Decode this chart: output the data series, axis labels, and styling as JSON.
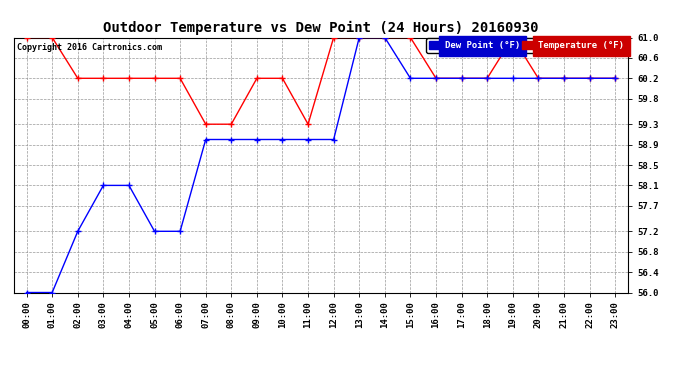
{
  "title": "Outdoor Temperature vs Dew Point (24 Hours) 20160930",
  "copyright": "Copyright 2016 Cartronics.com",
  "x_labels": [
    "00:00",
    "01:00",
    "02:00",
    "03:00",
    "04:00",
    "05:00",
    "06:00",
    "07:00",
    "08:00",
    "09:00",
    "10:00",
    "11:00",
    "12:00",
    "13:00",
    "14:00",
    "15:00",
    "16:00",
    "17:00",
    "18:00",
    "19:00",
    "20:00",
    "21:00",
    "22:00",
    "23:00"
  ],
  "ylim": [
    56.0,
    61.0
  ],
  "yticks": [
    56.0,
    56.4,
    56.8,
    57.2,
    57.7,
    58.1,
    58.5,
    58.9,
    59.3,
    59.8,
    60.2,
    60.6,
    61.0
  ],
  "temp_color": "#ff0000",
  "dew_color": "#0000ff",
  "background_color": "#ffffff",
  "grid_color": "#999999",
  "legend_dew_bg": "#0000cc",
  "legend_temp_bg": "#cc0000",
  "temp_data": [
    61.0,
    61.0,
    60.2,
    60.2,
    60.2,
    60.2,
    60.2,
    59.3,
    59.3,
    60.2,
    60.2,
    59.3,
    61.0,
    61.0,
    61.0,
    61.0,
    60.2,
    60.2,
    60.2,
    61.0,
    60.2,
    60.2,
    60.2,
    60.2
  ],
  "dew_data": [
    56.0,
    56.0,
    57.2,
    58.1,
    58.1,
    57.2,
    57.2,
    59.0,
    59.0,
    59.0,
    59.0,
    59.0,
    59.0,
    61.0,
    61.0,
    60.2,
    60.2,
    60.2,
    60.2,
    60.2,
    60.2,
    60.2,
    60.2,
    60.2
  ],
  "legend_dew_label": "Dew Point (°F)",
  "legend_temp_label": "Temperature (°F)"
}
